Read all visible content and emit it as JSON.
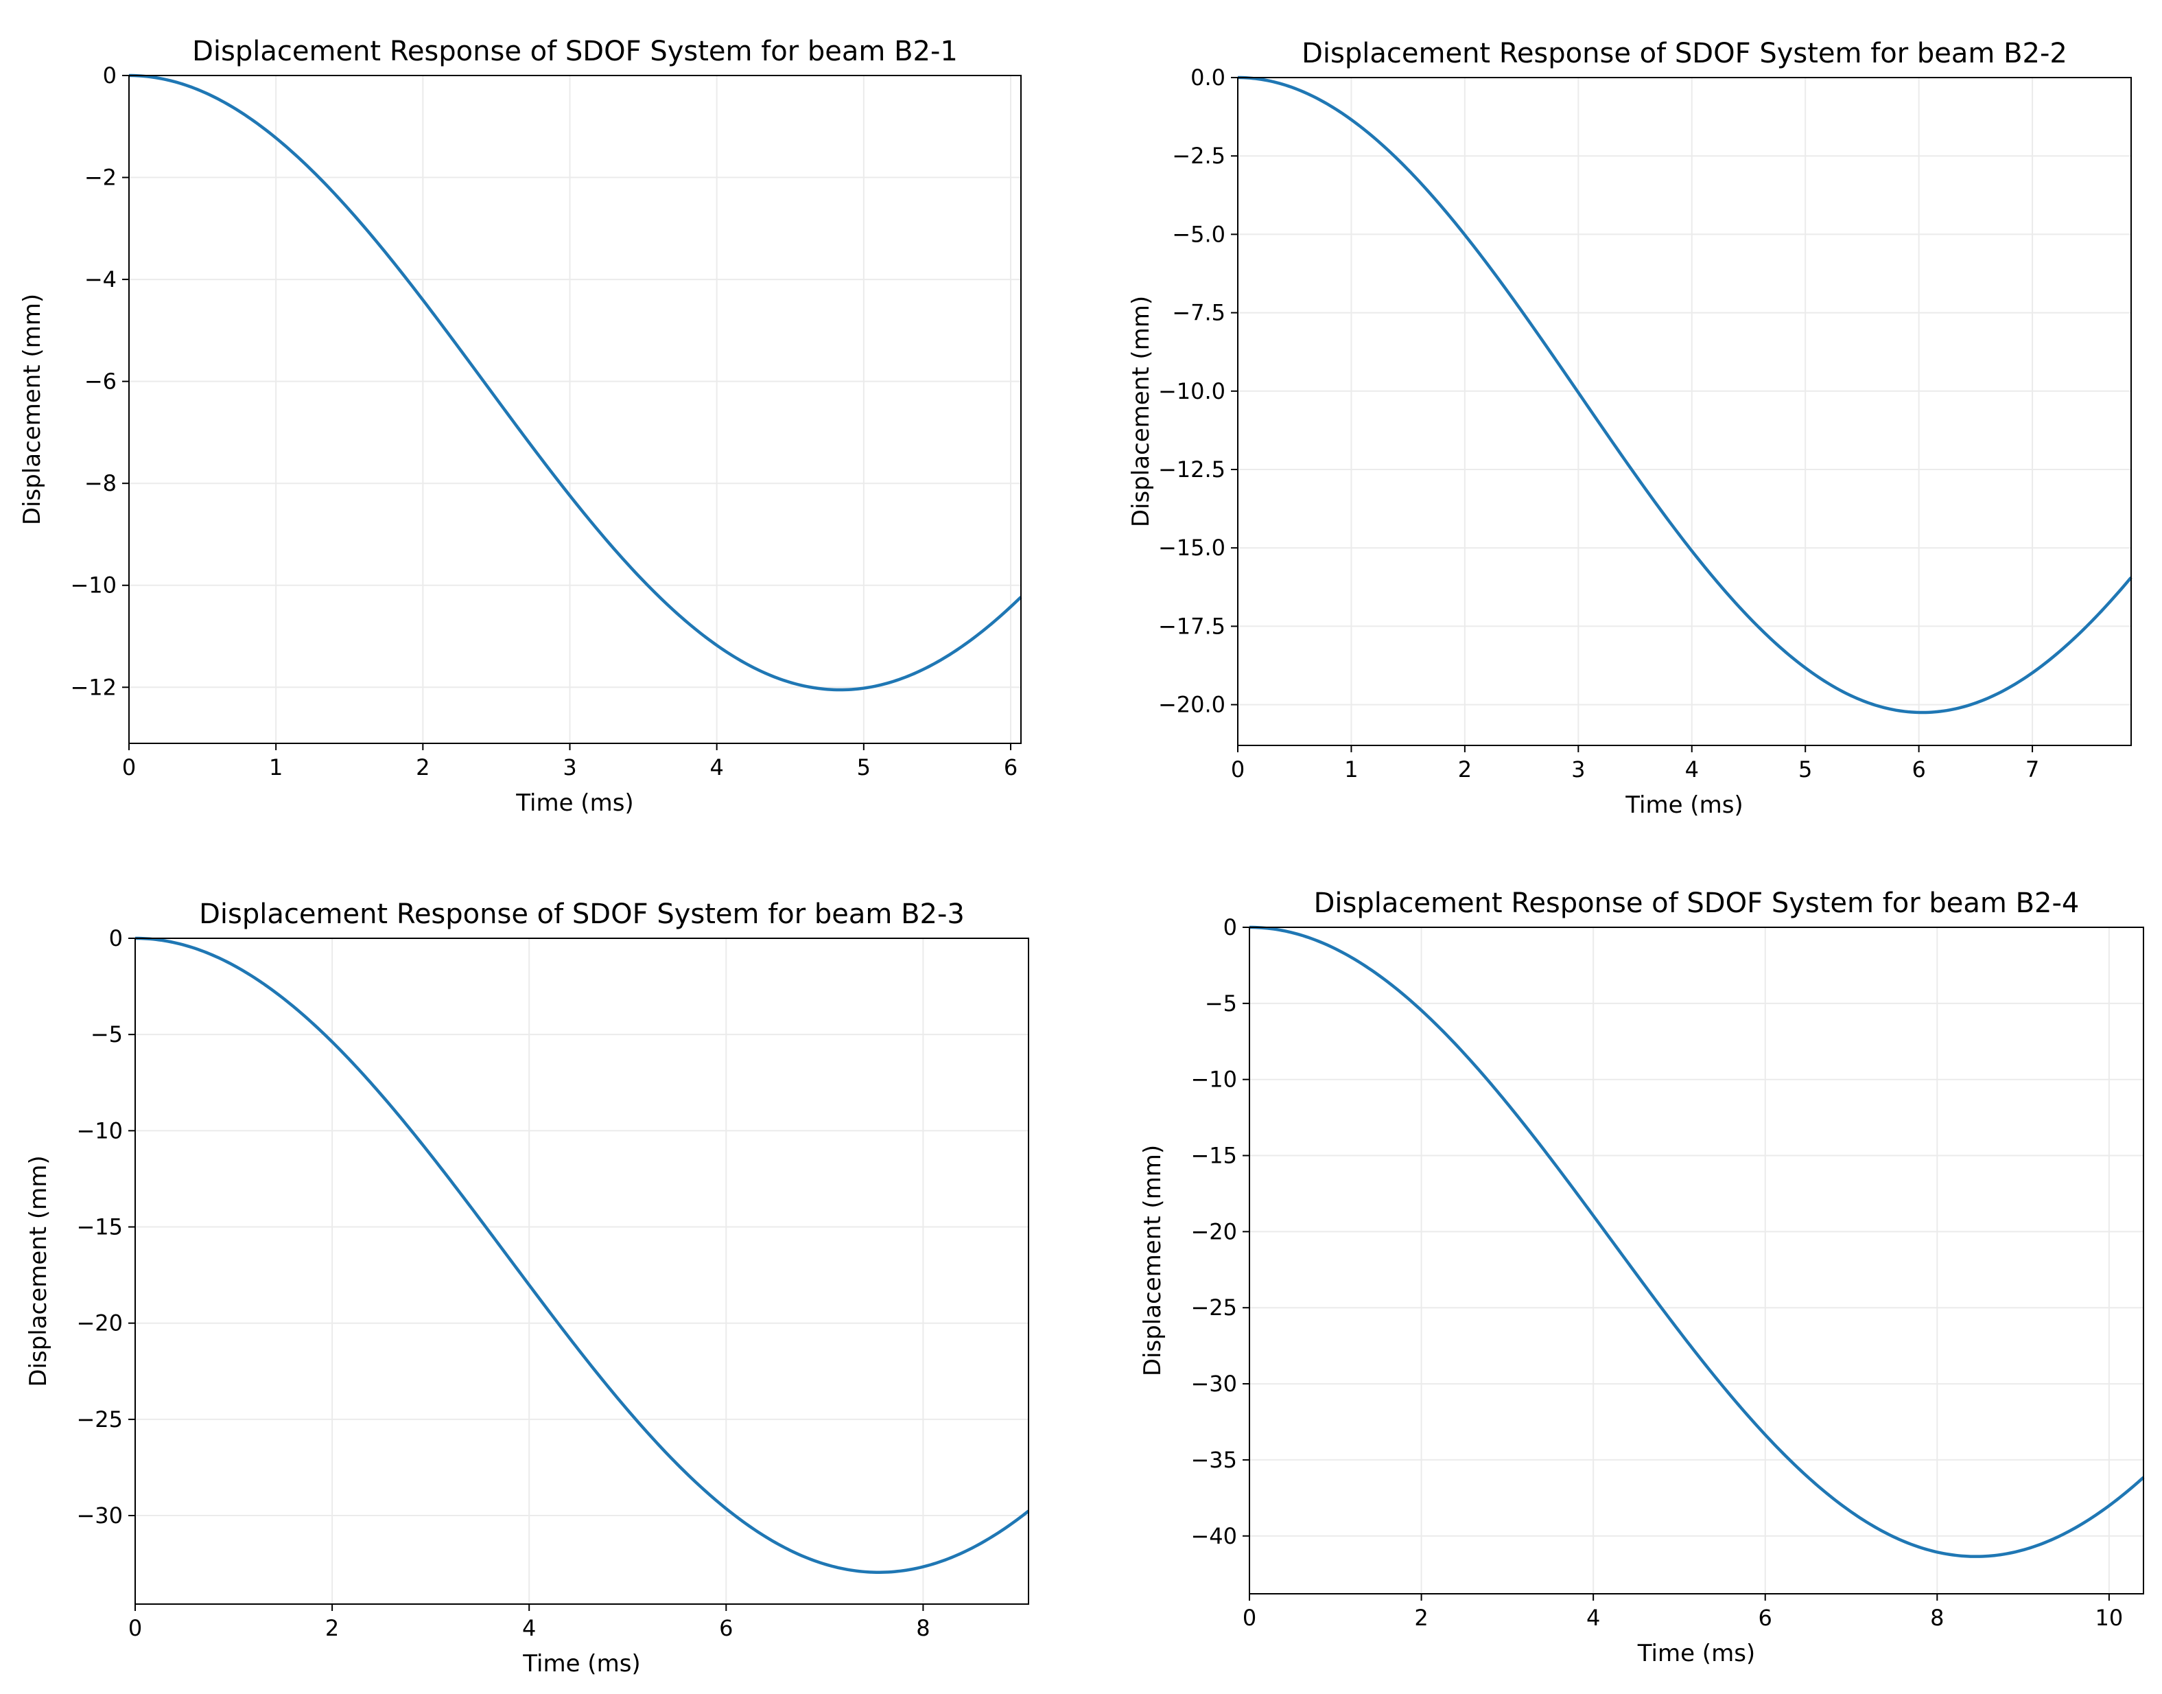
{
  "colors": {
    "line": "#1f77b4",
    "grid": "#ebebeb",
    "axis": "#000000",
    "background": "#ffffff"
  },
  "chart_data": [
    {
      "type": "line",
      "title": "Displacement Response of SDOF System for beam B2-1",
      "xlabel": "Time (ms)",
      "ylabel": "Displacement (mm)",
      "xlim": [
        0,
        6.07
      ],
      "ylim": [
        -13.1,
        0
      ],
      "xticks": [
        0,
        1,
        2,
        3,
        4,
        5,
        6
      ],
      "xtick_labels": [
        "0",
        "1",
        "2",
        "3",
        "4",
        "5",
        "6"
      ],
      "yticks": [
        0,
        -2,
        -4,
        -6,
        -8,
        -10,
        -12
      ],
      "ytick_labels": [
        "0",
        "−2",
        "−4",
        "−6",
        "−8",
        "−10",
        "−12"
      ],
      "grid": true,
      "series": [
        {
          "name": "displacement",
          "t_end": 6.07,
          "period": 9.68,
          "amplitude": 12.05
        }
      ]
    },
    {
      "type": "line",
      "title": "Displacement Response of SDOF System for beam B2-2",
      "xlabel": "Time (ms)",
      "ylabel": "Displacement (mm)",
      "xlim": [
        0,
        7.87
      ],
      "ylim": [
        -21.3,
        0
      ],
      "xticks": [
        0,
        1,
        2,
        3,
        4,
        5,
        6,
        7
      ],
      "xtick_labels": [
        "0",
        "1",
        "2",
        "3",
        "4",
        "5",
        "6",
        "7"
      ],
      "yticks": [
        0,
        -2.5,
        -5,
        -7.5,
        -10,
        -12.5,
        -15,
        -17.5,
        -20
      ],
      "ytick_labels": [
        "0.0",
        "−2.5",
        "−5.0",
        "−7.5",
        "−10.0",
        "−12.5",
        "−15.0",
        "−17.5",
        "−20.0"
      ],
      "grid": true,
      "series": [
        {
          "name": "displacement",
          "t_end": 7.87,
          "period": 12.06,
          "amplitude": 20.25
        }
      ]
    },
    {
      "type": "line",
      "title": "Displacement Response of SDOF System for beam B2-3",
      "xlabel": "Time (ms)",
      "ylabel": "Displacement (mm)",
      "xlim": [
        0,
        9.07
      ],
      "ylim": [
        -34.6,
        0
      ],
      "xticks": [
        0,
        2,
        4,
        6,
        8
      ],
      "xtick_labels": [
        "0",
        "2",
        "4",
        "6",
        "8"
      ],
      "yticks": [
        0,
        -5,
        -10,
        -15,
        -20,
        -25,
        -30
      ],
      "ytick_labels": [
        "0",
        "−5",
        "−10",
        "−15",
        "−20",
        "−25",
        "−30"
      ],
      "grid": true,
      "series": [
        {
          "name": "displacement",
          "t_end": 9.07,
          "period": 15.1,
          "amplitude": 32.95
        }
      ]
    },
    {
      "type": "line",
      "title": "Displacement Response of SDOF System for beam B2-4",
      "xlabel": "Time (ms)",
      "ylabel": "Displacement (mm)",
      "xlim": [
        0,
        10.4
      ],
      "ylim": [
        -43.8,
        0
      ],
      "xticks": [
        0,
        2,
        4,
        6,
        8,
        10
      ],
      "xtick_labels": [
        "0",
        "2",
        "4",
        "6",
        "8",
        "10"
      ],
      "yticks": [
        0,
        -5,
        -10,
        -15,
        -20,
        -25,
        -30,
        -35,
        -40
      ],
      "ytick_labels": [
        "0",
        "−5",
        "−10",
        "−15",
        "−20",
        "−25",
        "−30",
        "−35",
        "−40"
      ],
      "grid": true,
      "series": [
        {
          "name": "displacement",
          "t_end": 10.4,
          "period": 16.9,
          "amplitude": 41.35
        }
      ]
    }
  ]
}
